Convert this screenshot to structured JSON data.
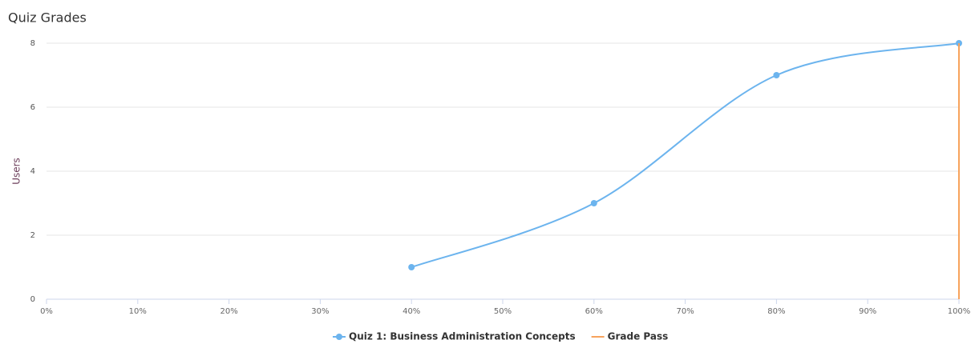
{
  "chart_data": {
    "type": "line",
    "title": "Quiz Grades",
    "y_label": "Users",
    "xlim": [
      0,
      100
    ],
    "xticks": [
      {
        "value": 0,
        "label": "0%"
      },
      {
        "value": 10,
        "label": "10%"
      },
      {
        "value": 20,
        "label": "20%"
      },
      {
        "value": 30,
        "label": "30%"
      },
      {
        "value": 40,
        "label": "40%"
      },
      {
        "value": 50,
        "label": "50%"
      },
      {
        "value": 60,
        "label": "60%"
      },
      {
        "value": 70,
        "label": "70%"
      },
      {
        "value": 80,
        "label": "80%"
      },
      {
        "value": 90,
        "label": "90%"
      },
      {
        "value": 100,
        "label": "100%"
      }
    ],
    "ylim": [
      0,
      8
    ],
    "yticks": [
      0,
      2,
      4,
      6,
      8
    ],
    "grid": true,
    "series": [
      {
        "name": "Quiz 1: Business Administration Concepts",
        "color": "#6cb4ee",
        "x": [
          40,
          60,
          80,
          100
        ],
        "values": [
          1,
          3,
          7,
          8
        ],
        "smooth": true,
        "markers": true
      },
      {
        "name": "Grade Pass",
        "color": "#f7a35c",
        "x": [
          100,
          100
        ],
        "values": [
          0,
          8
        ],
        "smooth": false,
        "markers": false
      }
    ]
  }
}
